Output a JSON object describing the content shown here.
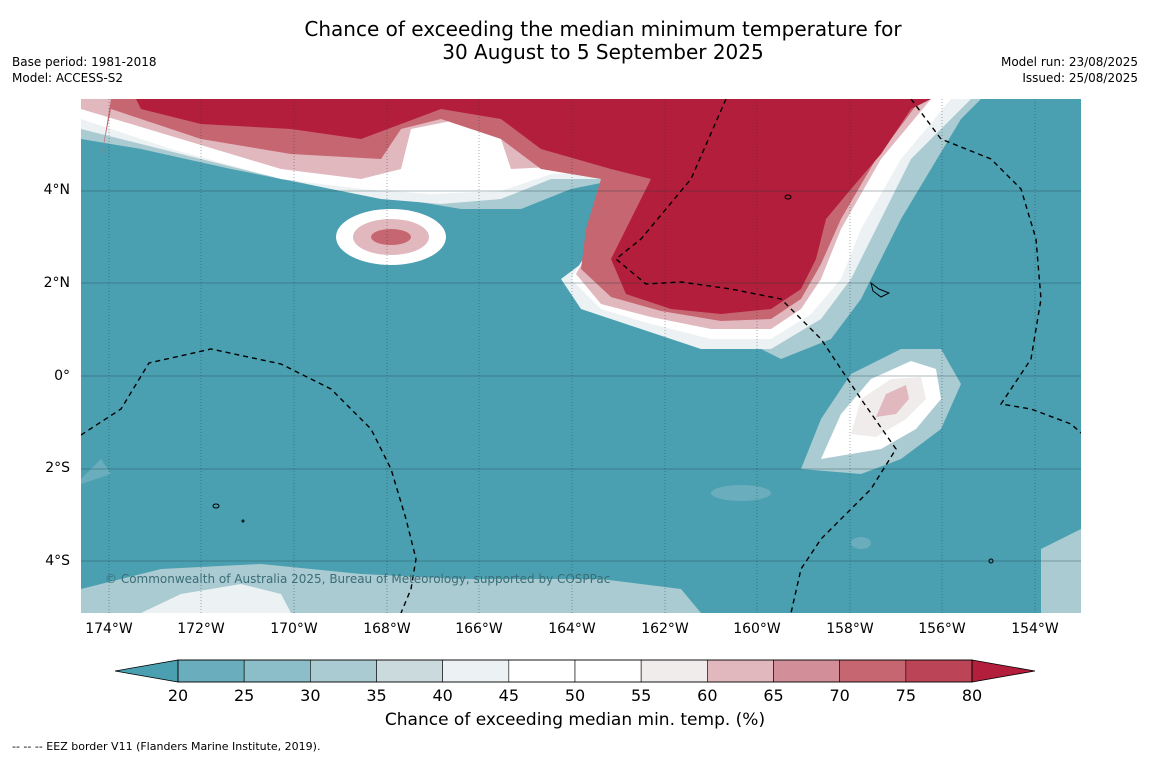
{
  "title": {
    "line1": "Chance of exceeding the median minimum temperature for",
    "line2": "30 August to 5 September 2025"
  },
  "meta_left": {
    "base_period": "Base period: 1981-2018",
    "model": "Model: ACCESS-S2"
  },
  "meta_right": {
    "model_run": "Model run: 23/08/2025",
    "issued": "Issued: 25/08/2025"
  },
  "map": {
    "lat_labels": [
      "4°N",
      "2°N",
      "0°",
      "2°S",
      "4°S"
    ],
    "lon_labels": [
      "174°W",
      "172°W",
      "170°W",
      "168°W",
      "166°W",
      "164°W",
      "162°W",
      "160°W",
      "158°W",
      "156°W",
      "154°W"
    ],
    "copyright": "© Commonwealth of Australia 2025, Bureau of Meteorology, supported by COSPPac",
    "colors": {
      "below_20": "#4aa0b1",
      "above_80": "#b21e3b"
    }
  },
  "colorbar": {
    "ticks": [
      "20",
      "25",
      "30",
      "35",
      "40",
      "45",
      "50",
      "55",
      "60",
      "65",
      "70",
      "75",
      "80"
    ],
    "colors": [
      "#6aadbd",
      "#8bbec9",
      "#aacbd1",
      "#cbdadd",
      "#ecf2f3",
      "#ffffff",
      "#ffffff",
      "#f0ecec",
      "#e1b8be",
      "#d28f99",
      "#c66671",
      "#bb4456"
    ],
    "low_color": "#4aa0b1",
    "high_color": "#b21e3b",
    "label": "Chance of exceeding median min. temp. (%)"
  },
  "footer": "--  --  -- EEZ border V11 (Flanders Marine Institute, 2019)."
}
